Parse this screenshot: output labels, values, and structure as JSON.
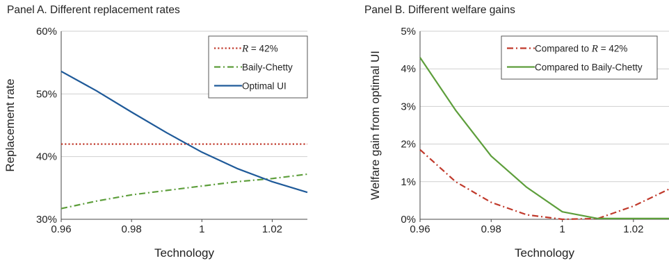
{
  "chart_data": [
    {
      "type": "line",
      "title": "Panel A. Different replacement rates",
      "xlabel": "Technology",
      "ylabel": "Replacement rate",
      "xlim": [
        0.96,
        1.03
      ],
      "ylim": [
        30,
        60
      ],
      "x_ticks": [
        "0.96",
        "0.98",
        "1",
        "1.02"
      ],
      "y_ticks": [
        "30%",
        "40%",
        "50%",
        "60%"
      ],
      "grid": "horizontal",
      "legend_placement": "top-right",
      "series": [
        {
          "name": "R = 42%",
          "legend_label": "= 42%",
          "legend_symbol": "R",
          "color": "#c0392b",
          "dash": "dotted",
          "x": [
            0.96,
            1.03
          ],
          "values": [
            42,
            42
          ]
        },
        {
          "name": "Baily-Chetty",
          "legend_label": "Baily-Chetty",
          "color": "#5d9e3b",
          "dash": "dashdot",
          "x": [
            0.96,
            0.97,
            0.98,
            0.99,
            1.0,
            1.01,
            1.02,
            1.03
          ],
          "values": [
            31.7,
            32.9,
            33.9,
            34.6,
            35.3,
            36.0,
            36.5,
            37.2
          ]
        },
        {
          "name": "Optimal UI",
          "legend_label": "Optimal UI",
          "color": "#1f5a99",
          "dash": "solid",
          "x": [
            0.96,
            0.97,
            0.98,
            0.99,
            1.0,
            1.01,
            1.02,
            1.03
          ],
          "values": [
            53.6,
            50.5,
            47.1,
            43.8,
            40.7,
            38.1,
            36.0,
            34.3
          ]
        }
      ]
    },
    {
      "type": "line",
      "title": "Panel B. Different welfare gains",
      "xlabel": "Technology",
      "ylabel": "Welfare gain from optimal UI",
      "xlim": [
        0.96,
        1.03
      ],
      "ylim": [
        0,
        5
      ],
      "x_ticks": [
        "0.96",
        "0.98",
        "1",
        "1.02"
      ],
      "y_ticks": [
        "0%",
        "1%",
        "2%",
        "3%",
        "4%",
        "5%"
      ],
      "grid": "horizontal",
      "legend_placement": "top-right",
      "series": [
        {
          "name": "Compared to R = 42%",
          "legend_label": "= 42%",
          "legend_prefix": "Compared to",
          "legend_symbol": "R",
          "color": "#c0392b",
          "dash": "dashdot",
          "x": [
            0.96,
            0.97,
            0.98,
            0.99,
            1.0,
            1.01,
            1.02,
            1.03
          ],
          "values": [
            1.85,
            1.0,
            0.45,
            0.12,
            0.0,
            0.02,
            0.35,
            0.8
          ]
        },
        {
          "name": "Compared to Baily-Chetty",
          "legend_label": "Compared to Baily-Chetty",
          "color": "#5d9e3b",
          "dash": "solid",
          "x": [
            0.96,
            0.97,
            0.98,
            0.99,
            1.0,
            1.01,
            1.02,
            1.03
          ],
          "values": [
            4.3,
            2.9,
            1.68,
            0.85,
            0.2,
            0.02,
            0.02,
            0.02
          ]
        }
      ]
    }
  ]
}
